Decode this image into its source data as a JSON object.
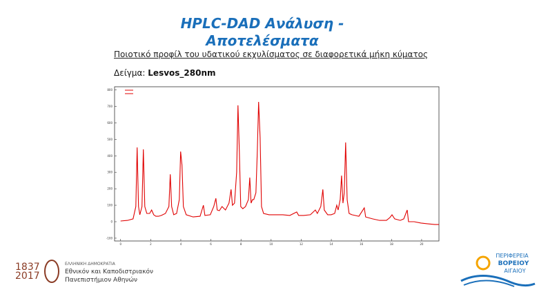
{
  "header": {
    "title_line1": "HPLC-DAD Ανάλυση -",
    "title_line2": "Αποτελέσματα",
    "subtitle": "Ποιοτικό προφίλ του υδατικού εκχυλίσματος σε διαφορετικά μήκη κύματος",
    "sample_label": "Δείγμα:",
    "sample_name": "Lesvos_280nm"
  },
  "chart_data": {
    "type": "line",
    "color": "#e00000",
    "x": [
      0,
      0.46,
      0.83,
      1.01,
      1.1,
      1.19,
      1.28,
      1.42,
      1.51,
      1.61,
      1.74,
      1.93,
      2.06,
      2.2,
      2.34,
      2.52,
      2.71,
      2.98,
      3.21,
      3.3,
      3.39,
      3.53,
      3.72,
      3.9,
      3.99,
      4.08,
      4.17,
      4.36,
      4.82,
      5.28,
      5.5,
      5.6,
      5.96,
      6.19,
      6.33,
      6.42,
      6.56,
      6.74,
      6.97,
      7.2,
      7.34,
      7.43,
      7.57,
      7.71,
      7.8,
      7.89,
      7.98,
      8.12,
      8.3,
      8.49,
      8.58,
      8.67,
      8.76,
      8.85,
      8.99,
      9.08,
      9.17,
      9.27,
      9.36,
      9.5,
      9.86,
      10.32,
      10.78,
      11.24,
      11.7,
      11.83,
      12.16,
      12.61,
      12.94,
      13.07,
      13.3,
      13.44,
      13.53,
      13.76,
      13.99,
      14.22,
      14.36,
      14.45,
      14.59,
      14.68,
      14.77,
      14.86,
      14.95,
      15.05,
      15.18,
      15.37,
      15.83,
      16.19,
      16.28,
      16.74,
      17.2,
      17.66,
      17.89,
      18.03,
      18.21,
      18.58,
      18.81,
      19.04,
      19.13,
      19.5,
      19.95,
      20.41,
      20.87,
      21.15
    ],
    "values": [
      4,
      8,
      17,
      92,
      451,
      92,
      42,
      92,
      439,
      92,
      50,
      50,
      71,
      42,
      33,
      33,
      38,
      50,
      92,
      288,
      92,
      42,
      50,
      134,
      426,
      343,
      92,
      42,
      29,
      33,
      100,
      38,
      42,
      92,
      142,
      71,
      67,
      92,
      71,
      113,
      196,
      100,
      113,
      301,
      706,
      426,
      92,
      79,
      92,
      134,
      268,
      113,
      134,
      134,
      176,
      426,
      727,
      510,
      92,
      50,
      42,
      42,
      42,
      38,
      59,
      38,
      38,
      42,
      71,
      50,
      92,
      196,
      71,
      42,
      42,
      50,
      100,
      71,
      134,
      280,
      113,
      176,
      481,
      134,
      50,
      42,
      33,
      84,
      29,
      17,
      8,
      8,
      25,
      42,
      17,
      8,
      17,
      71,
      0,
      0,
      -8,
      -13,
      -17,
      -17
    ],
    "xlim": [
      -0.4,
      21.15
    ],
    "xticks": [
      0,
      2,
      4,
      6,
      8,
      10,
      12,
      14,
      16,
      18,
      20
    ],
    "ylim": [
      -117,
      819
    ],
    "yticks": [
      -100,
      0,
      100,
      200,
      300,
      400,
      500,
      600,
      700,
      800
    ]
  },
  "footer": {
    "years_top": "1837",
    "years_bottom": "2017",
    "uni_line1": "ΕΛΛΗΝΙΚΗ ΔΗΜΟΚΡΑΤΙΑ",
    "uni_line2": "Εθνικόν και Καποδιστριακόν",
    "uni_line3": "Πανεπιστήμιον Αθηνών",
    "region_line1": "ΠΕΡΙΦΕΡΕΙΑ",
    "region_line2": "ΒΟΡΕΙΟΥ",
    "region_line3": "ΑΙΓΑΙΟΥ"
  }
}
